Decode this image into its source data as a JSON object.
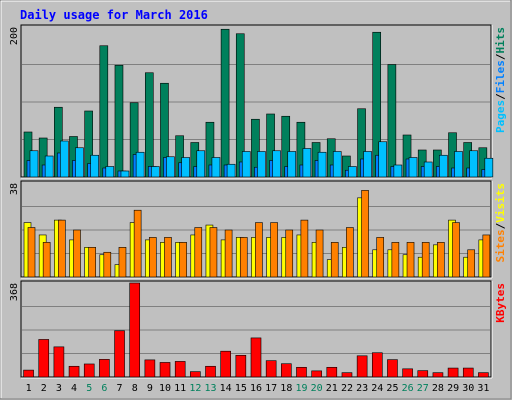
{
  "chart_data": {
    "type": "bar",
    "title": "Daily usage for March 2016",
    "categories": [
      "1",
      "2",
      "3",
      "4",
      "5",
      "6",
      "7",
      "8",
      "9",
      "10",
      "11",
      "12",
      "13",
      "14",
      "15",
      "16",
      "17",
      "18",
      "19",
      "20",
      "21",
      "22",
      "23",
      "24",
      "25",
      "26",
      "27",
      "28",
      "29",
      "30",
      "31"
    ],
    "weekend_days": [
      "5",
      "6",
      "12",
      "13",
      "19",
      "20",
      "26",
      "27"
    ],
    "colors": {
      "hits": "#00805c",
      "files": "#0080ff",
      "pages": "#00c0ff",
      "visits": "#ffff00",
      "sites": "#ff8000",
      "kbytes": "#ff0000",
      "weekend_label": "#00805c",
      "weekday_label": "#000000"
    },
    "panels": [
      {
        "name": "hits-files-pages",
        "ymax_label": "200",
        "ymax": 200,
        "legend": [
          {
            "text": "Pages",
            "color": "#00c0ff"
          },
          {
            "text": "/",
            "color": "#000000"
          },
          {
            "text": "Files",
            "color": "#0080ff"
          },
          {
            "text": "/",
            "color": "#000000"
          },
          {
            "text": "Hits",
            "color": "#00805c"
          }
        ],
        "series": [
          {
            "name": "Hits",
            "color": "#00805c",
            "values": [
              60,
              52,
              93,
              54,
              88,
              175,
              149,
              99,
              139,
              125,
              55,
              46,
              73,
              197,
              191,
              77,
              84,
              81,
              73,
              46,
              51,
              28,
              91,
              193,
              150,
              56,
              36,
              36,
              59,
              46,
              39
            ]
          },
          {
            "name": "Files",
            "color": "#0080ff",
            "values": [
              22,
              16,
              32,
              22,
              18,
              12,
              8,
              30,
              14,
              26,
              19,
              14,
              16,
              16,
              20,
              13,
              22,
              14,
              16,
              22,
              16,
              9,
              24,
              29,
              14,
              24,
              14,
              14,
              12,
              12,
              10
            ]
          },
          {
            "name": "Pages",
            "color": "#00c0ff",
            "values": [
              35,
              28,
              48,
              39,
              29,
              14,
              8,
              33,
              14,
              27,
              26,
              35,
              26,
              17,
              34,
              34,
              35,
              34,
              38,
              33,
              34,
              14,
              34,
              47,
              16,
              26,
              20,
              29,
              34,
              35,
              25
            ]
          }
        ]
      },
      {
        "name": "visits-sites",
        "ymax_label": "38",
        "ymax": 38,
        "legend": [
          {
            "text": "Sites",
            "color": "#ff8000"
          },
          {
            "text": "/",
            "color": "#000000"
          },
          {
            "text": "Visits",
            "color": "#ffff00"
          }
        ],
        "series": [
          {
            "name": "Visits",
            "color": "#ffff00",
            "values": [
              22,
              17,
              23,
              15,
              12,
              9,
              5,
              22,
              15,
              14,
              14,
              17,
              21,
              15,
              16,
              16,
              16,
              16,
              17,
              14,
              7,
              12,
              32,
              11,
              11,
              9,
              8,
              13,
              23,
              8,
              15
            ]
          },
          {
            "name": "Sites",
            "color": "#ff8000",
            "values": [
              20,
              14,
              23,
              19,
              12,
              10,
              12,
              27,
              16,
              16,
              14,
              20,
              20,
              19,
              16,
              22,
              22,
              19,
              23,
              19,
              14,
              20,
              35,
              16,
              14,
              14,
              14,
              14,
              22,
              11,
              17
            ]
          }
        ]
      },
      {
        "name": "kbytes",
        "ymax_label": "368",
        "ymax": 368,
        "legend": [
          {
            "text": "KBytes",
            "color": "#ff0000"
          }
        ],
        "series": [
          {
            "name": "KBytes",
            "color": "#ff0000",
            "values": [
              27,
              147,
              118,
              42,
              51,
              69,
              181,
              368,
              67,
              57,
              61,
              21,
              42,
              101,
              85,
              153,
              64,
              52,
              38,
              24,
              38,
              17,
              83,
              95,
              68,
              32,
              25,
              17,
              35,
              35,
              17
            ]
          }
        ]
      }
    ]
  }
}
